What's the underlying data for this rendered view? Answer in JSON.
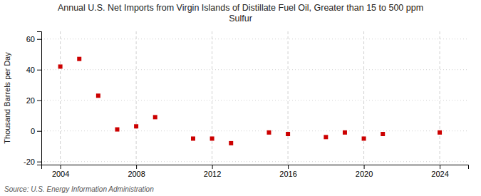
{
  "chart_data": {
    "type": "scatter",
    "title": "Annual U.S. Net Imports from Virgin Islands of Distillate Fuel Oil, Greater than 15 to 500 ppm\nSulfur",
    "ylabel": "Thousand Barrels per Day",
    "annotations": [
      "Source: U.S. Energy Information Administration"
    ],
    "x": [
      2004,
      2005,
      2006,
      2007,
      2008,
      2009,
      2011,
      2012,
      2013,
      2015,
      2016,
      2018,
      2019,
      2020,
      2021,
      2024
    ],
    "values": [
      42,
      47,
      23,
      1,
      3,
      9,
      -5,
      -5,
      -8,
      -1,
      -2,
      -4,
      -1,
      -5,
      -2,
      -1
    ],
    "color": "#cc0000",
    "marker": "square",
    "xlim": [
      2003.0,
      2025.5
    ],
    "ylim": [
      -22,
      65
    ],
    "xticks": [
      2004,
      2008,
      2012,
      2016,
      2020,
      2024
    ],
    "yticks": [
      -20,
      0,
      20,
      40,
      60
    ],
    "grid": true
  }
}
